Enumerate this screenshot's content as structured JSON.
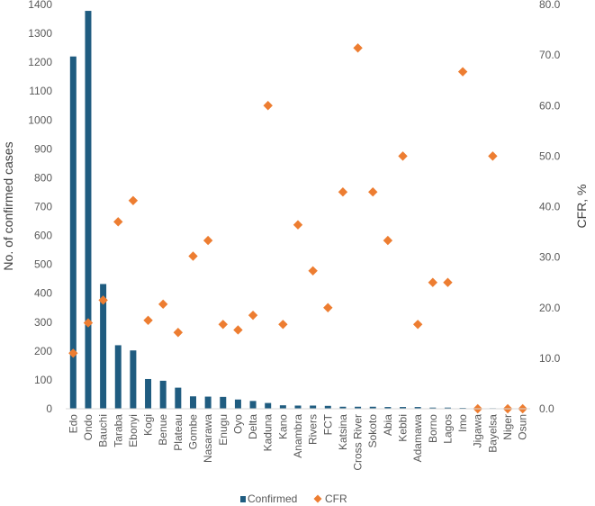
{
  "chart_data": {
    "type": "bar",
    "categories": [
      "Edo",
      "Ondo",
      "Bauchi",
      "Taraba",
      "Ebonyi",
      "Kogi",
      "Benue",
      "Plateau",
      "Gombe",
      "Nasarawa",
      "Enugu",
      "Oyo",
      "Delta",
      "Kaduna",
      "Kano",
      "Anambra",
      "Rivers",
      "FCT",
      "Katsina",
      "Cross River",
      "Sokoto",
      "Abia",
      "Kebbi",
      "Adamawa",
      "Borno",
      "Lagos",
      "Imo",
      "Jigawa",
      "Bayelsa",
      "Niger",
      "Osun"
    ],
    "series": [
      {
        "name": "Confirmed",
        "chart_type": "bar",
        "axis": "left",
        "color": "#1f5c80",
        "values": [
          1220,
          1378,
          432,
          220,
          202,
          103,
          97,
          73,
          43,
          42,
          41,
          32,
          27,
          20,
          12,
          11,
          11,
          10,
          7,
          7,
          7,
          6,
          6,
          6,
          4,
          4,
          3,
          1,
          2,
          1,
          1
        ]
      },
      {
        "name": "CFR",
        "chart_type": "scatter",
        "axis": "right",
        "marker": "diamond",
        "color": "#ed7d31",
        "values": [
          11.0,
          17.0,
          21.5,
          37.0,
          41.2,
          17.5,
          20.7,
          15.1,
          30.2,
          33.3,
          16.7,
          15.6,
          18.5,
          60.0,
          16.7,
          36.4,
          27.3,
          20.0,
          42.9,
          71.4,
          42.9,
          33.3,
          50.0,
          16.7,
          25.0,
          25.0,
          66.7,
          0.0,
          50.0,
          0.0,
          0.0
        ]
      }
    ],
    "ylabel": "No. of confirmed cases",
    "ylim": [
      0,
      1400
    ],
    "yticks": [
      "0",
      "100",
      "200",
      "300",
      "400",
      "500",
      "600",
      "700",
      "800",
      "900",
      "1000",
      "1100",
      "1200",
      "1300",
      "1400"
    ],
    "y2label": "CFR, %",
    "y2lim": [
      0,
      80
    ],
    "y2ticks": [
      "0.0",
      "10.0",
      "20.0",
      "30.0",
      "40.0",
      "50.0",
      "60.0",
      "70.0",
      "80.0"
    ],
    "grid": false,
    "legend": "bottom-center",
    "legend_entries": [
      "Confirmed",
      "CFR"
    ]
  }
}
